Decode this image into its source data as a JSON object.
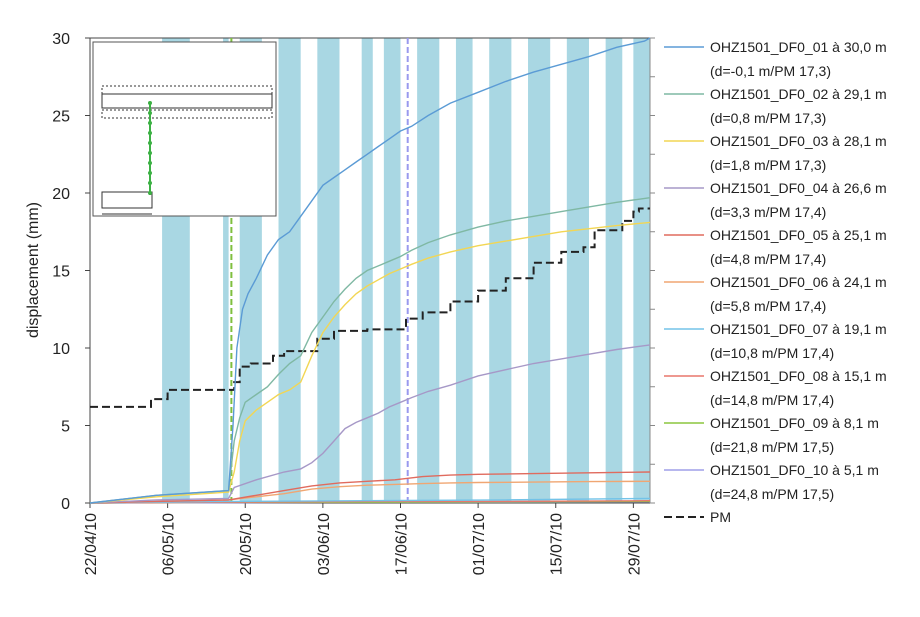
{
  "chart_data": {
    "type": "line",
    "title": "",
    "xlabel": "",
    "ylabel": "displacement (mm)",
    "ylim": [
      0,
      30
    ],
    "y_ticks": [
      "0",
      "5",
      "10",
      "15",
      "20",
      "25",
      "30"
    ],
    "x_range_days": [
      0,
      101
    ],
    "x_ticks": [
      "22/04/10",
      "06/05/10",
      "20/05/10",
      "03/06/10",
      "17/06/10",
      "01/07/10",
      "15/07/10",
      "29/07/10"
    ],
    "right_axis": "unlabeled",
    "shaded_bands_days": [
      [
        13,
        18
      ],
      [
        24,
        25
      ],
      [
        27,
        31
      ],
      [
        34,
        38
      ],
      [
        41,
        45
      ],
      [
        49,
        51
      ],
      [
        53,
        56
      ],
      [
        59,
        63
      ],
      [
        66,
        69
      ],
      [
        72,
        76
      ],
      [
        79,
        83
      ],
      [
        86,
        90
      ],
      [
        93,
        96
      ],
      [
        98,
        101
      ]
    ],
    "vertical_markers_days": [
      {
        "day": 25.5,
        "color": "#7fbf3f"
      },
      {
        "day": 57.3,
        "color": "#9999ee"
      }
    ],
    "legend_position": "right",
    "series": [
      {
        "name": "OHZ1501_DF0_01 à 30,0 m",
        "sub": "(d=-0,1 m/PM 17,3)",
        "color": "#5b9bd5",
        "x": [
          0,
          12,
          25,
          25.8,
          26.5,
          27.5,
          28.5,
          30,
          32,
          34,
          36,
          38,
          40,
          42,
          44,
          46,
          48,
          50,
          52,
          54,
          56,
          58,
          61,
          65,
          70,
          75,
          80,
          85,
          90,
          95,
          100,
          101
        ],
        "y": [
          0,
          0.5,
          0.8,
          5,
          10,
          12.5,
          13.5,
          14.5,
          16,
          17,
          17.5,
          18.5,
          19.5,
          20.5,
          21,
          21.5,
          22,
          22.5,
          23,
          23.5,
          24,
          24.3,
          25,
          25.8,
          26.5,
          27.2,
          27.8,
          28.3,
          28.8,
          29.4,
          29.8,
          30
        ]
      },
      {
        "name": "OHZ1501_DF0_02 à 29,1 m",
        "sub": "(d=0,8 m/PM 17,3)",
        "color": "#7fb8a3",
        "x": [
          0,
          12,
          25,
          26,
          27,
          28,
          30,
          32,
          34,
          36,
          38,
          40,
          42,
          44,
          46,
          48,
          50,
          52,
          54,
          56,
          58,
          61,
          65,
          70,
          75,
          80,
          85,
          90,
          95,
          101
        ],
        "y": [
          0,
          0.5,
          0.8,
          4,
          5.5,
          6.5,
          7,
          7.5,
          8.3,
          9,
          9.5,
          11,
          12,
          13,
          13.8,
          14.5,
          15,
          15.3,
          15.6,
          15.9,
          16.3,
          16.8,
          17.3,
          17.8,
          18.2,
          18.5,
          18.8,
          19.1,
          19.4,
          19.7
        ]
      },
      {
        "name": "OHZ1501_DF0_03 à 28,1 m",
        "sub": "(d=1,8 m/PM 17,3)",
        "color": "#f2d654",
        "x": [
          0,
          12,
          25,
          26,
          27,
          28,
          30,
          32,
          34,
          36,
          38,
          40,
          42,
          44,
          46,
          48,
          50,
          52,
          54,
          56,
          58,
          61,
          65,
          70,
          75,
          80,
          85,
          90,
          95,
          101
        ],
        "y": [
          0,
          0.4,
          0.7,
          2,
          4,
          5.3,
          6,
          6.5,
          7,
          7.3,
          7.8,
          9.5,
          11,
          12,
          12.8,
          13.5,
          14,
          14.4,
          14.8,
          15.1,
          15.4,
          15.8,
          16.2,
          16.6,
          16.9,
          17.2,
          17.5,
          17.7,
          17.9,
          18.1
        ]
      },
      {
        "name": "OHZ1501_DF0_04 à 26,6 m",
        "sub": "(d=3,3 m/PM 17,4)",
        "color": "#a698c7",
        "x": [
          0,
          12,
          25,
          26,
          30,
          35,
          38,
          40,
          42,
          44,
          46,
          48,
          50,
          52,
          54,
          56,
          58,
          61,
          65,
          70,
          75,
          80,
          85,
          90,
          95,
          101
        ],
        "y": [
          0,
          0.2,
          0.3,
          1,
          1.5,
          2,
          2.2,
          2.6,
          3.2,
          4,
          4.8,
          5.2,
          5.5,
          5.8,
          6.2,
          6.5,
          6.8,
          7.2,
          7.6,
          8.2,
          8.6,
          9,
          9.3,
          9.6,
          9.9,
          10.2
        ]
      },
      {
        "name": "OHZ1501_DF0_05 à 25,1 m",
        "sub": "(d=4,8 m/PM 17,4)",
        "color": "#e06b5e",
        "x": [
          0,
          12,
          25,
          30,
          35,
          40,
          45,
          50,
          55,
          60,
          65,
          70,
          80,
          90,
          101
        ],
        "y": [
          0,
          0.1,
          0.2,
          0.5,
          0.8,
          1.1,
          1.3,
          1.4,
          1.5,
          1.7,
          1.8,
          1.85,
          1.9,
          1.95,
          2
        ]
      },
      {
        "name": "OHZ1501_DF0_06 à 24,1 m",
        "sub": "(d=5,8 m/PM 17,4)",
        "color": "#f0a672",
        "x": [
          0,
          12,
          25,
          30,
          35,
          40,
          45,
          50,
          55,
          60,
          65,
          70,
          80,
          90,
          101
        ],
        "y": [
          0,
          0.1,
          0.2,
          0.4,
          0.6,
          0.9,
          1.05,
          1.15,
          1.2,
          1.25,
          1.3,
          1.32,
          1.35,
          1.38,
          1.4
        ]
      },
      {
        "name": "OHZ1501_DF0_07 à 19,1 m",
        "sub": "(d=10,8 m/PM 17,4)",
        "color": "#73c3e8",
        "x": [
          0,
          25,
          50,
          75,
          101
        ],
        "y": [
          0,
          0.1,
          0.15,
          0.2,
          0.3
        ]
      },
      {
        "name": "OHZ1501_DF0_08 à 15,1 m",
        "sub": "(d=14,8 m/PM 17,4)",
        "color": "#e8776b",
        "x": [
          0,
          25,
          50,
          75,
          101
        ],
        "y": [
          0,
          0.05,
          0.1,
          0.1,
          0.15
        ]
      },
      {
        "name": "OHZ1501_DF0_09 à 8,1 m",
        "sub": "(d=21,8 m/PM 17,5)",
        "color": "#8cc63f",
        "x": [
          0,
          25,
          50,
          75,
          101
        ],
        "y": [
          0,
          0.05,
          0.05,
          0.08,
          0.1
        ]
      },
      {
        "name": "OHZ1501_DF0_10 à 5,1 m",
        "sub": "(d=24,8 m/PM 17,5)",
        "color": "#9f9fe8",
        "x": [
          0,
          25,
          50,
          75,
          101
        ],
        "y": [
          0,
          0.02,
          0.05,
          0.05,
          0.08
        ]
      },
      {
        "name": "PM",
        "sub": "",
        "color": "#222222",
        "dash": true,
        "x": [
          0,
          11,
          11,
          14,
          14,
          26,
          26,
          27,
          27,
          29,
          29,
          33,
          33,
          35,
          35,
          41,
          41,
          44,
          44,
          50,
          50,
          57,
          57,
          60,
          60,
          65,
          65,
          70,
          70,
          75,
          75,
          80,
          80,
          85,
          85,
          89,
          89,
          91,
          91,
          96,
          96,
          98,
          98,
          99,
          99,
          101
        ],
        "y": [
          6.2,
          6.2,
          6.7,
          6.7,
          7.3,
          7.3,
          7.8,
          7.8,
          8.8,
          8.8,
          9.0,
          9.0,
          9.5,
          9.5,
          9.8,
          9.8,
          10.6,
          10.6,
          11.1,
          11.1,
          11.2,
          11.2,
          11.9,
          11.9,
          12.3,
          12.3,
          13.0,
          13.0,
          13.7,
          13.7,
          14.5,
          14.5,
          15.5,
          15.5,
          16.2,
          16.2,
          16.5,
          16.5,
          17.6,
          17.6,
          18.2,
          18.2,
          18.8,
          18.8,
          19.0,
          19.0
        ]
      }
    ]
  }
}
